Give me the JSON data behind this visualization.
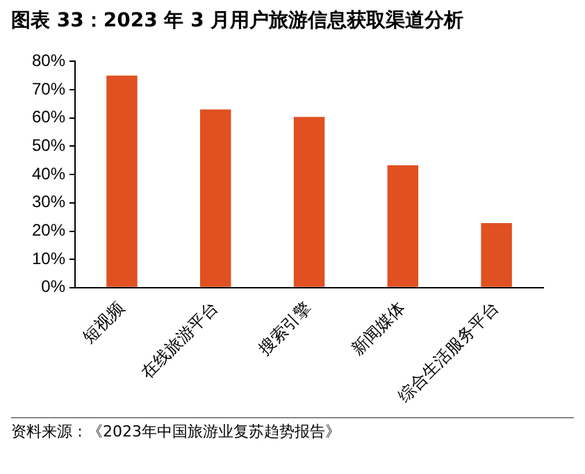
{
  "chart_data": {
    "type": "bar",
    "title": "图表 33：2023 年 3 月用户旅游信息获取渠道分析",
    "categories": [
      "短视频",
      "在线旅游平台",
      "搜索引擎",
      "新闻媒体",
      "综合生活服务平台"
    ],
    "values": [
      75,
      63,
      60.4,
      43.3,
      22.8
    ],
    "color": "#e05020",
    "ylim": [
      0,
      80
    ],
    "yticks": [
      {
        "value": 0,
        "label": "0%"
      },
      {
        "value": 10,
        "label": "10%"
      },
      {
        "value": 20,
        "label": "20%"
      },
      {
        "value": 30,
        "label": "30%"
      },
      {
        "value": 40,
        "label": "40%"
      },
      {
        "value": 50,
        "label": "50%"
      },
      {
        "value": 60,
        "label": "60%"
      },
      {
        "value": 70,
        "label": "70%"
      },
      {
        "value": 80,
        "label": "80%"
      }
    ],
    "grid": false,
    "legend": false,
    "annotations": [
      "资料来源：《2023年中国旅游业复苏趋势报告》"
    ]
  }
}
